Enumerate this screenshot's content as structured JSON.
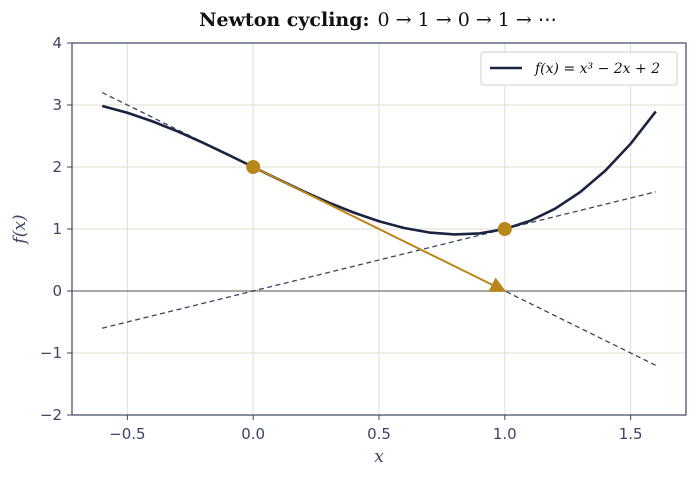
{
  "title_bold": "Newton cycling:",
  "title_math": "0 → 1 → 0 → 1 → ⋯",
  "chart_data": {
    "type": "line",
    "xlabel": "x",
    "ylabel": "f(x)",
    "xlim": [
      -0.72,
      1.72
    ],
    "ylim": [
      -2,
      4
    ],
    "xticks": [
      -0.5,
      0.0,
      0.5,
      1.0,
      1.5
    ],
    "xtick_labels": [
      "−0.5",
      "0.0",
      "0.5",
      "1.0",
      "1.5"
    ],
    "yticks": [
      -2,
      -1,
      0,
      1,
      2,
      3,
      4
    ],
    "ytick_labels": [
      "−2",
      "−1",
      "0",
      "1",
      "2",
      "3",
      "4"
    ],
    "grid": true,
    "legend_position": "top-right",
    "series": [
      {
        "name": "f(x) = x³ − 2x + 2",
        "x": [
          -0.6,
          -0.5,
          -0.4,
          -0.3,
          -0.2,
          -0.1,
          0.0,
          0.1,
          0.2,
          0.3,
          0.4,
          0.5,
          0.6,
          0.7,
          0.8,
          0.9,
          1.0,
          1.1,
          1.2,
          1.3,
          1.4,
          1.5,
          1.6
        ],
        "y": [
          2.984,
          2.875,
          2.736,
          2.573,
          2.392,
          2.199,
          2.0,
          1.801,
          1.608,
          1.427,
          1.264,
          1.125,
          1.016,
          0.943,
          0.912,
          0.929,
          1.0,
          1.131,
          1.328,
          1.597,
          1.944,
          2.375,
          2.896
        ],
        "color": "#1a2340"
      }
    ],
    "tangent_lines": [
      {
        "x": [
          -0.6,
          1.6
        ],
        "y": [
          3.2,
          -1.2
        ],
        "color": "#3b4463"
      },
      {
        "x": [
          -0.6,
          1.6
        ],
        "y": [
          -0.6,
          1.6
        ],
        "color": "#3b4463"
      }
    ],
    "points": [
      {
        "x": 0.0,
        "y": 2.0,
        "color": "#b8861b"
      },
      {
        "x": 1.0,
        "y": 1.0,
        "color": "#b8861b"
      }
    ],
    "arrow": {
      "from": [
        0.0,
        2.0
      ],
      "to": [
        1.0,
        0.0
      ],
      "color": "#b8861b"
    },
    "zero_line_color": "#8a8a8a",
    "grid_color": "#e3ddd2",
    "spine_color": "#3b4463"
  }
}
